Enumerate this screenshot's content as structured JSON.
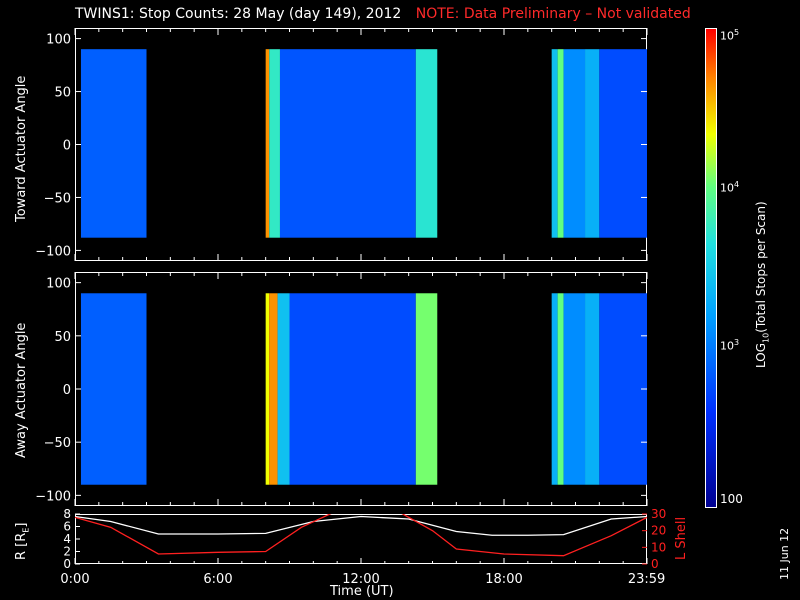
{
  "title": {
    "main": "TWINS1: Stop Counts: 28 May (day 149), 2012",
    "note": "NOTE: Data Preliminary – Not validated"
  },
  "panels": {
    "top_ylabel": "Toward Actuator Angle",
    "bottom_ylabel": "Away Actuator Angle",
    "orbit_left_label": "R [R",
    "orbit_left_sub": "E",
    "orbit_right_label": "L Shell"
  },
  "colorbar": {
    "label": "LOG",
    "label_sub": "10",
    "label_rest": "(Total Stops per Scan)",
    "ticks": [
      "10",
      "10",
      "10",
      "100"
    ],
    "tick_sups": [
      "5",
      "4",
      "3",
      ""
    ]
  },
  "xaxis": {
    "label": "Time (UT)",
    "ticks": [
      "0:00",
      "6:00",
      "12:00",
      "18:00",
      "23:59"
    ]
  },
  "date_stamp": "11 Jun 12",
  "colors": {
    "note": "#ff2a2a",
    "r_line": "#ffffff",
    "l_line": "#ff2020"
  },
  "chart_data": [
    {
      "type": "heatmap",
      "name": "",
      "ylabel": "Toward Actuator Angle",
      "xlabel": "Time (UT)",
      "ylim": [
        -110,
        110
      ],
      "yticks": [
        "100",
        "50",
        "0",
        "−50",
        "−100"
      ],
      "ytick_values": [
        100,
        50,
        0,
        -50,
        -100
      ],
      "segments": [
        {
          "start_h": 0.25,
          "end_h": 3.0,
          "level": 2.85
        },
        {
          "start_h": 8.0,
          "end_h": 8.15,
          "level": 4.6
        },
        {
          "start_h": 8.15,
          "end_h": 8.6,
          "level": 3.7
        },
        {
          "start_h": 8.6,
          "end_h": 14.3,
          "level": 2.8
        },
        {
          "start_h": 14.3,
          "end_h": 15.2,
          "level": 3.65
        },
        {
          "start_h": 20.0,
          "end_h": 20.25,
          "level": 3.4
        },
        {
          "start_h": 20.25,
          "end_h": 20.5,
          "level": 3.95
        },
        {
          "start_h": 20.5,
          "end_h": 21.4,
          "level": 3.1
        },
        {
          "start_h": 21.4,
          "end_h": 22.0,
          "level": 3.3
        },
        {
          "start_h": 22.0,
          "end_h": 24.0,
          "level": 2.75
        }
      ],
      "angle_range": [
        -88,
        90
      ]
    },
    {
      "type": "heatmap",
      "name": "",
      "ylabel": "Away Actuator Angle",
      "xlabel": "Time (UT)",
      "ylim": [
        -110,
        110
      ],
      "yticks": [
        "100",
        "50",
        "0",
        "−50",
        "−100"
      ],
      "ytick_values": [
        100,
        50,
        0,
        -50,
        -100
      ],
      "segments": [
        {
          "start_h": 0.25,
          "end_h": 3.0,
          "level": 2.85
        },
        {
          "start_h": 8.0,
          "end_h": 8.15,
          "level": 4.3
        },
        {
          "start_h": 8.15,
          "end_h": 8.5,
          "level": 4.6
        },
        {
          "start_h": 8.5,
          "end_h": 9.0,
          "level": 3.4
        },
        {
          "start_h": 9.0,
          "end_h": 14.3,
          "level": 2.75
        },
        {
          "start_h": 14.3,
          "end_h": 15.2,
          "level": 4.0
        },
        {
          "start_h": 20.0,
          "end_h": 20.25,
          "level": 3.3
        },
        {
          "start_h": 20.25,
          "end_h": 20.5,
          "level": 3.95
        },
        {
          "start_h": 20.5,
          "end_h": 21.4,
          "level": 3.1
        },
        {
          "start_h": 21.4,
          "end_h": 22.0,
          "level": 3.3
        },
        {
          "start_h": 22.0,
          "end_h": 24.0,
          "level": 2.75
        }
      ],
      "angle_range": [
        -90,
        90
      ]
    },
    {
      "type": "line",
      "name": "",
      "xlim": [
        0,
        24
      ],
      "left_ylim": [
        0,
        8
      ],
      "right_ylim": [
        0,
        30
      ],
      "left_yticks": [
        "8",
        "6",
        "4",
        "2",
        "0"
      ],
      "left_ytick_values": [
        8,
        6,
        4,
        2,
        0
      ],
      "right_yticks": [
        "30",
        "20",
        "10",
        "0"
      ],
      "right_ytick_values": [
        30,
        20,
        10,
        0
      ],
      "series": [
        {
          "axis": "left",
          "x": [
            0,
            1.5,
            3.5,
            6,
            8,
            10,
            12,
            14,
            16,
            17.5,
            19,
            20.5,
            22.5,
            24
          ],
          "y": [
            7.6,
            6.8,
            4.8,
            4.8,
            4.9,
            6.8,
            7.6,
            7.2,
            5.2,
            4.6,
            4.6,
            4.7,
            7.2,
            7.6
          ]
        },
        {
          "axis": "right",
          "x": [
            0,
            1.5,
            3.5,
            6,
            8,
            9.5,
            11,
            13.5,
            15,
            16,
            18,
            20.5,
            22.5,
            24
          ],
          "y": [
            28,
            22,
            6,
            7,
            7.5,
            22,
            32,
            32,
            20,
            9,
            6,
            5,
            17,
            28
          ]
        }
      ]
    }
  ]
}
